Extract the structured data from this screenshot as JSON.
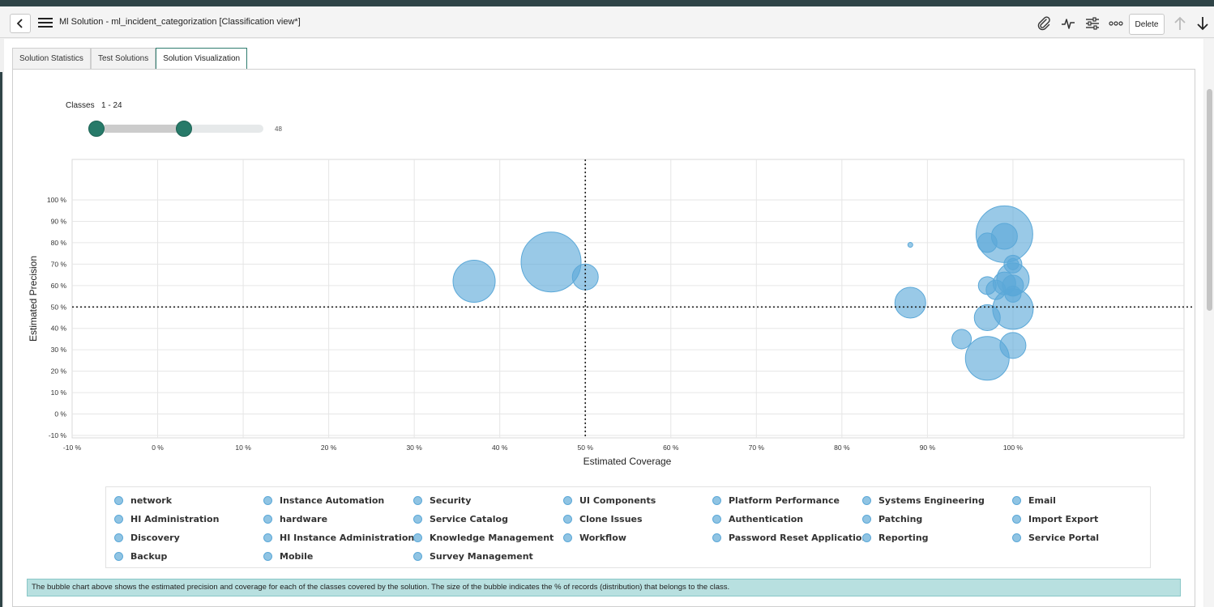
{
  "header": {
    "title": "Ml Solution - ml_incident_categorization [Classification view*]",
    "delete_label": "Delete"
  },
  "tabs": [
    {
      "label": "Solution Statistics"
    },
    {
      "label": "Test Solutions"
    },
    {
      "label": "Solution Visualization"
    }
  ],
  "classes_filter": {
    "label": "Classes",
    "range_text": "1 - 24",
    "min_label": "1",
    "max_label": "48",
    "min": 1,
    "max": 48,
    "selected_low": 1,
    "selected_high": 24
  },
  "legend": {
    "items": [
      "network",
      "Instance Automation",
      "Security",
      "UI Components",
      "Platform Performance",
      "Systems Engineering",
      "Email",
      "HI Administration",
      "hardware",
      "Service Catalog",
      "Clone Issues",
      "Authentication",
      "Patching",
      "Import Export",
      "Discovery",
      "HI Instance Administration",
      "Knowledge Management",
      "Workflow",
      "Password Reset Application",
      "Reporting",
      "Service Portal",
      "Backup",
      "Mobile",
      "Survey Management"
    ]
  },
  "info_text": "The bubble chart above shows the estimated precision and coverage for each of the classes covered by the solution. The size of the bubble indicates the % of records (distribution) that belongs to the class.",
  "chart_data": {
    "type": "scatter",
    "subtype": "bubble",
    "xlabel": "Estimated Coverage",
    "ylabel": "Estimated Precision",
    "xlim": [
      -10,
      120
    ],
    "ylim": [
      -10,
      100
    ],
    "x_ticks": [
      "-10 %",
      "0 %",
      "10 %",
      "20 %",
      "30 %",
      "40 %",
      "50 %",
      "60 %",
      "70 %",
      "80 %",
      "90 %",
      "100 %"
    ],
    "y_ticks": [
      "-10 %",
      "0 %",
      "10 %",
      "20 %",
      "30 %",
      "40 %",
      "50 %",
      "60 %",
      "70 %",
      "80 %",
      "90 %",
      "100 %"
    ],
    "reference_lines": {
      "x": 50,
      "y": 50
    },
    "grid": true,
    "bubble_color": "#5ba8d8",
    "points": [
      {
        "x": 37,
        "y": 62,
        "size": 26
      },
      {
        "x": 46,
        "y": 71,
        "size": 37
      },
      {
        "x": 50,
        "y": 64,
        "size": 16
      },
      {
        "x": 88,
        "y": 79,
        "size": 3
      },
      {
        "x": 88,
        "y": 52,
        "size": 19
      },
      {
        "x": 94,
        "y": 35,
        "size": 12
      },
      {
        "x": 97,
        "y": 26,
        "size": 27
      },
      {
        "x": 97,
        "y": 45,
        "size": 16
      },
      {
        "x": 97,
        "y": 60,
        "size": 11
      },
      {
        "x": 97,
        "y": 80,
        "size": 12
      },
      {
        "x": 98,
        "y": 58,
        "size": 12
      },
      {
        "x": 99,
        "y": 84,
        "size": 35
      },
      {
        "x": 99,
        "y": 83,
        "size": 16
      },
      {
        "x": 99,
        "y": 61,
        "size": 14
      },
      {
        "x": 100,
        "y": 49,
        "size": 25
      },
      {
        "x": 100,
        "y": 63,
        "size": 20
      },
      {
        "x": 100,
        "y": 70,
        "size": 11
      },
      {
        "x": 100,
        "y": 60,
        "size": 13
      },
      {
        "x": 100,
        "y": 56,
        "size": 10
      },
      {
        "x": 100,
        "y": 32,
        "size": 16
      },
      {
        "x": 100,
        "y": 70,
        "size": 7
      }
    ]
  }
}
